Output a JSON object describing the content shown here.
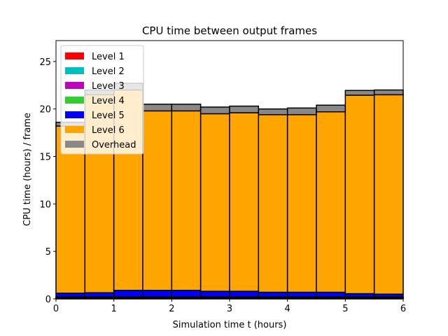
{
  "chart_data": {
    "type": "bar",
    "title": "CPU time between output frames",
    "xlabel": "Simulation time t (hours)",
    "ylabel": "CPU time (hours) / frame",
    "xlim": [
      0,
      6
    ],
    "ylim": [
      0,
      27.2
    ],
    "xticks": [
      0,
      1,
      2,
      3,
      4,
      5,
      6
    ],
    "yticks": [
      0,
      5,
      10,
      15,
      20,
      25
    ],
    "grid": false,
    "legend_position": "top-left",
    "bins": [
      [
        0.0,
        0.5
      ],
      [
        0.5,
        1.0
      ],
      [
        1.0,
        1.5
      ],
      [
        1.5,
        2.0
      ],
      [
        2.0,
        2.5
      ],
      [
        2.5,
        3.0
      ],
      [
        3.0,
        3.5
      ],
      [
        3.5,
        4.0
      ],
      [
        4.0,
        4.5
      ],
      [
        4.5,
        5.0
      ],
      [
        5.0,
        5.5
      ],
      [
        5.5,
        6.0
      ]
    ],
    "series": [
      {
        "name": "Level 1",
        "color": "#ff0000",
        "values": [
          0.05,
          0.05,
          0.05,
          0.05,
          0.05,
          0.05,
          0.05,
          0.05,
          0.05,
          0.05,
          0.05,
          0.05
        ]
      },
      {
        "name": "Level 2",
        "color": "#00bfbf",
        "values": [
          0.05,
          0.05,
          0.05,
          0.05,
          0.05,
          0.05,
          0.05,
          0.05,
          0.05,
          0.05,
          0.05,
          0.05
        ]
      },
      {
        "name": "Level 3",
        "color": "#bf00bf",
        "values": [
          0.05,
          0.05,
          0.05,
          0.05,
          0.05,
          0.05,
          0.05,
          0.05,
          0.05,
          0.05,
          0.05,
          0.05
        ]
      },
      {
        "name": "Level 4",
        "color": "#33cc33",
        "values": [
          0.05,
          0.05,
          0.05,
          0.05,
          0.05,
          0.05,
          0.05,
          0.05,
          0.05,
          0.05,
          0.05,
          0.05
        ]
      },
      {
        "name": "Level 5",
        "color": "#0000ff",
        "values": [
          0.4,
          0.45,
          0.7,
          0.7,
          0.7,
          0.6,
          0.6,
          0.5,
          0.5,
          0.5,
          0.35,
          0.3
        ]
      },
      {
        "name": "Level 6",
        "color": "#ffa500",
        "values": [
          17.6,
          20.85,
          21.1,
          18.9,
          18.9,
          18.7,
          18.8,
          18.7,
          18.7,
          19.0,
          20.9,
          21.0
        ]
      },
      {
        "name": "Overhead",
        "color": "#888888",
        "values": [
          0.4,
          0.5,
          0.7,
          0.7,
          0.7,
          0.7,
          0.7,
          0.6,
          0.7,
          0.7,
          0.5,
          0.5
        ]
      }
    ]
  }
}
